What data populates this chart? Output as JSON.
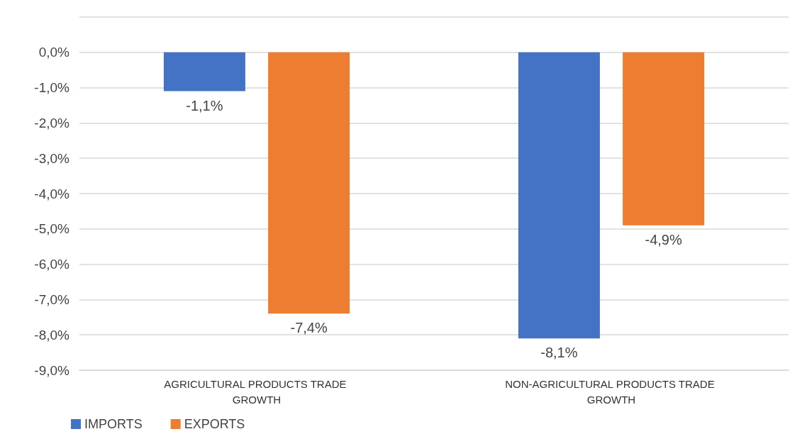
{
  "chart_data": {
    "type": "bar",
    "categories": [
      "AGRICULTURAL PRODUCTS TRADE GROWTH",
      "NON-AGRICULTURAL PRODUCTS TRADE GROWTH"
    ],
    "series": [
      {
        "name": "IMPORTS",
        "color": "#4472c4",
        "values": [
          -1.1,
          -8.1
        ],
        "value_labels": [
          "-1,1%",
          "-8,1%"
        ]
      },
      {
        "name": "EXPORTS",
        "color": "#ed7d31",
        "values": [
          -7.4,
          -4.9
        ],
        "value_labels": [
          "-7,4%",
          "-4,9%"
        ]
      }
    ],
    "ylim": [
      -9,
      1
    ],
    "yticks": [
      {
        "value": -9,
        "label": "-9,0%"
      },
      {
        "value": -8,
        "label": "-8,0%"
      },
      {
        "value": -7,
        "label": "-7,0%"
      },
      {
        "value": -6,
        "label": "-6,0%"
      },
      {
        "value": -5,
        "label": "-5,0%"
      },
      {
        "value": -4,
        "label": "-4,0%"
      },
      {
        "value": -3,
        "label": "-3,0%"
      },
      {
        "value": -2,
        "label": "-2,0%"
      },
      {
        "value": -1,
        "label": "-1,0%"
      },
      {
        "value": 0,
        "label": "0,0%"
      },
      {
        "value": 1,
        "label": null
      }
    ],
    "grid": "y",
    "legend": "bottom left"
  }
}
